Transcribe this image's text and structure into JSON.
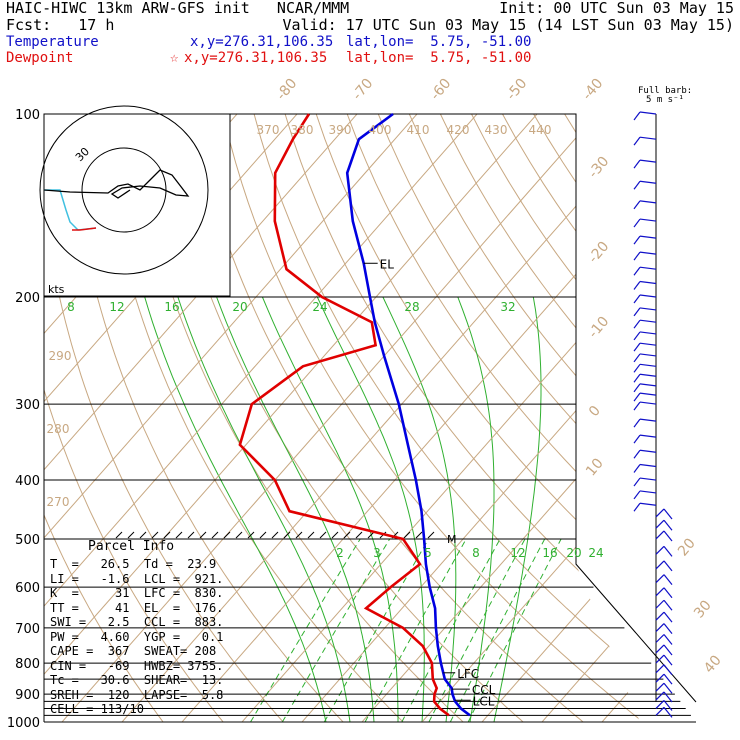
{
  "header": {
    "line1_left": "HAIC-HIWC 13km ARW-GFS init   NCAR/MMM",
    "line1_right": "Init: 00 UTC Sun 03 May 15",
    "line2_left": "Fcst:   17 h",
    "line2_right": "Valid: 17 UTC Sun 03 May 15 (14 LST Sun 03 May 15)",
    "temp_label": "Temperature",
    "temp_xy": "x,y=276.31,106.35",
    "temp_latlon": "lat,lon=  5.75, -51.00",
    "dew_label": "Dewpoint",
    "dew_xy": "x,y=276.31,106.35",
    "dew_star": "☆",
    "dew_latlon": "lat,lon=  5.75, -51.00"
  },
  "barb_legend": {
    "title": "Full barb:",
    "value": "5 m s⁻¹"
  },
  "hodograph": {
    "unit": "kts",
    "ring_label": "30"
  },
  "parcel_info": {
    "title": "Parcel Info",
    "rows": [
      "T  =   26.5  Td =  23.9",
      "LI =   -1.6  LCL =  921.",
      "K  =     31  LFC =  830.",
      "TT =     41  EL  =  176.",
      "SWI =   2.5  CCL =  883.",
      "PW =   4.60  YGP =   0.1",
      "CAPE =  367  SWEAT= 208",
      "CIN =   -69  HWBZ= 3755.",
      "Tc =   30.6  SHEAR=  13.",
      "SREH =  120  LAPSE=  5.8",
      "CELL = 113/10"
    ]
  },
  "levels": {
    "el": "EL",
    "lfc": "LFC",
    "ccl": "CCL",
    "lcl": "LCL",
    "m": "M"
  },
  "colors": {
    "temperature": "#0000e0",
    "dewpoint": "#e00000",
    "dry_adiabat": "#c8a882",
    "moist_adiabat": "#30b030",
    "mixing_ratio": "#30b030"
  },
  "chart_data": {
    "type": "line",
    "title": "",
    "xlabel": "",
    "ylabel": "",
    "y_scale": "log-pressure",
    "ylim": [
      1000,
      100
    ],
    "pressure_tick_labels": [
      "100",
      "200",
      "300",
      "400",
      "500",
      "600",
      "700",
      "800",
      "900",
      "1000"
    ],
    "isotherm_labels": [
      "-80",
      "-70",
      "-60",
      "-50",
      "-40",
      "-30",
      "-20",
      "-10",
      "0",
      "10",
      "20",
      "30",
      "40"
    ],
    "theta_labels": [
      "370",
      "380",
      "390",
      "400",
      "410",
      "420",
      "430",
      "440",
      "290",
      "280",
      "270"
    ],
    "mixing_ratio_labels_upper": [
      "8",
      "12",
      "16",
      "20",
      "24",
      "28",
      "32"
    ],
    "mixing_ratio_labels_lower": [
      "2",
      "3",
      "5",
      "8",
      "12",
      "16",
      "20",
      "24"
    ],
    "series": [
      {
        "name": "Temperature",
        "pressure": [
          975,
          950,
          925,
          900,
          880,
          850,
          800,
          750,
          700,
          650,
          600,
          550,
          500,
          450,
          400,
          350,
          300,
          250,
          220,
          200,
          176,
          150,
          125,
          110,
          100
        ],
        "temperature": [
          27.0,
          24.5,
          22.5,
          21.0,
          20.0,
          17.5,
          14.5,
          11.5,
          8.5,
          5.5,
          1.5,
          -2.5,
          -6.5,
          -11.0,
          -16.5,
          -23.0,
          -30.5,
          -40.0,
          -46.5,
          -51.0,
          -57.0,
          -65.0,
          -73.0,
          -76.0,
          -74.0
        ]
      },
      {
        "name": "Dewpoint",
        "pressure": [
          975,
          950,
          925,
          900,
          880,
          850,
          800,
          750,
          700,
          650,
          600,
          550,
          500,
          450,
          400,
          350,
          300,
          260,
          240,
          220,
          200,
          180,
          150,
          125,
          110,
          100
        ],
        "temperature": [
          23.5,
          21.0,
          19.0,
          18.0,
          17.5,
          15.5,
          13.0,
          9.0,
          3.0,
          -6.0,
          -5.0,
          -3.5,
          -10.0,
          -33.0,
          -40.0,
          -51.0,
          -55.0,
          -52.0,
          -43.0,
          -47.0,
          -59.0,
          -69.0,
          -78.0,
          -85.0,
          -87.0,
          -88.0
        ]
      }
    ]
  }
}
